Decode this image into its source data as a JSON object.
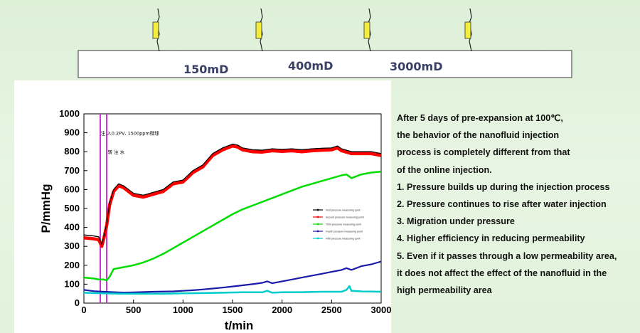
{
  "schematic": {
    "sections": [
      {
        "label": "150mD"
      },
      {
        "label": "400mD"
      },
      {
        "label": "3000mD"
      }
    ],
    "tap_color": "#f2ee3a"
  },
  "chart_data": {
    "type": "line",
    "xlabel": "t/min",
    "ylabel": "P/mmHg",
    "xlim": [
      0,
      3000
    ],
    "ylim": [
      0,
      1000
    ],
    "xticks": [
      0,
      500,
      1000,
      1500,
      2000,
      2500,
      3000
    ],
    "yticks": [
      0,
      100,
      200,
      300,
      400,
      500,
      600,
      700,
      800,
      900,
      1000
    ],
    "annotations": [
      {
        "text": "注 入0.2PV, 1500ppm微球",
        "x": 170,
        "y": 900
      },
      {
        "text": "转 注 水",
        "x": 240,
        "y": 800
      }
    ],
    "vlines": [
      {
        "x": 165,
        "color": "#cc33cc"
      },
      {
        "x": 230,
        "color": "#cc33cc"
      }
    ],
    "series": [
      {
        "name": "First pressure measuring point",
        "color": "#000000",
        "x": [
          0,
          100,
          150,
          180,
          200,
          230,
          260,
          300,
          350,
          400,
          500,
          600,
          700,
          800,
          900,
          1000,
          1100,
          1200,
          1300,
          1400,
          1500,
          1550,
          1600,
          1700,
          1800,
          1900,
          2000,
          2100,
          2200,
          2300,
          2400,
          2500,
          2560,
          2600,
          2700,
          2800,
          2900,
          3000
        ],
        "y": [
          360,
          355,
          350,
          310,
          350,
          420,
          530,
          600,
          630,
          620,
          580,
          570,
          585,
          600,
          640,
          650,
          700,
          730,
          790,
          820,
          840,
          835,
          820,
          810,
          808,
          815,
          812,
          815,
          810,
          815,
          818,
          820,
          830,
          815,
          800,
          800,
          800,
          790
        ]
      },
      {
        "name": "Second pressure measuring point",
        "color": "#ff0000",
        "x": [
          0,
          100,
          150,
          180,
          200,
          230,
          260,
          300,
          350,
          400,
          500,
          600,
          700,
          800,
          900,
          1000,
          1100,
          1200,
          1300,
          1400,
          1500,
          1550,
          1600,
          1700,
          1800,
          1900,
          2000,
          2100,
          2200,
          2300,
          2400,
          2500,
          2560,
          2600,
          2700,
          2800,
          2900,
          3000
        ],
        "y": [
          345,
          340,
          335,
          300,
          340,
          410,
          520,
          590,
          620,
          610,
          570,
          560,
          575,
          590,
          630,
          640,
          690,
          720,
          780,
          810,
          830,
          825,
          810,
          800,
          798,
          805,
          802,
          805,
          800,
          805,
          808,
          810,
          820,
          805,
          790,
          790,
          790,
          780
        ]
      },
      {
        "name": "Third pressure measuring point",
        "color": "#00dd00",
        "x": [
          0,
          100,
          150,
          200,
          230,
          260,
          300,
          400,
          500,
          600,
          700,
          800,
          900,
          1000,
          1100,
          1200,
          1300,
          1400,
          1500,
          1600,
          1700,
          1800,
          1900,
          2000,
          2100,
          2200,
          2300,
          2400,
          2500,
          2600,
          2650,
          2700,
          2800,
          2900,
          3000
        ],
        "y": [
          135,
          130,
          125,
          125,
          120,
          140,
          180,
          190,
          200,
          215,
          235,
          260,
          290,
          320,
          350,
          380,
          410,
          440,
          470,
          495,
          515,
          535,
          555,
          575,
          595,
          615,
          630,
          645,
          660,
          675,
          680,
          660,
          680,
          690,
          695
        ]
      },
      {
        "name": "Fourth pressure measuring point",
        "color": "#1a1aaa",
        "x": [
          0,
          100,
          200,
          300,
          400,
          500,
          700,
          900,
          1000,
          1100,
          1200,
          1300,
          1400,
          1500,
          1600,
          1700,
          1800,
          1850,
          1900,
          2000,
          2100,
          2200,
          2300,
          2400,
          2500,
          2600,
          2650,
          2700,
          2800,
          2900,
          3000
        ],
        "y": [
          70,
          63,
          60,
          58,
          56,
          57,
          60,
          62,
          65,
          68,
          72,
          77,
          82,
          88,
          94,
          100,
          107,
          115,
          105,
          115,
          125,
          135,
          145,
          155,
          165,
          175,
          185,
          175,
          195,
          205,
          220
        ]
      },
      {
        "name": "Fifth pressure measuring point",
        "color": "#00cccc",
        "x": [
          0,
          100,
          200,
          400,
          600,
          800,
          1000,
          1200,
          1400,
          1600,
          1800,
          1850,
          1900,
          2000,
          2200,
          2400,
          2600,
          2650,
          2680,
          2700,
          2800,
          3000
        ],
        "y": [
          55,
          53,
          52,
          50,
          50,
          50,
          52,
          53,
          55,
          57,
          57,
          65,
          55,
          57,
          58,
          60,
          60,
          70,
          90,
          65,
          62,
          60
        ]
      }
    ]
  },
  "notes": [
    "After 5 days of pre-expansion at 100℃,",
    "the behavior of the nanofluid injection",
    "process is completely different from that",
    "of the online injection.",
    "1. Pressure builds up during the injection process",
    "2. Pressure continues to rise after water injection",
    "3. Migration under pressure",
    "4. Higher efficiency in reducing permeability",
    "5. Even if it passes through a low permeability area,",
    "it does not affect the effect of the nanofluid in the",
    "high permeability area"
  ]
}
